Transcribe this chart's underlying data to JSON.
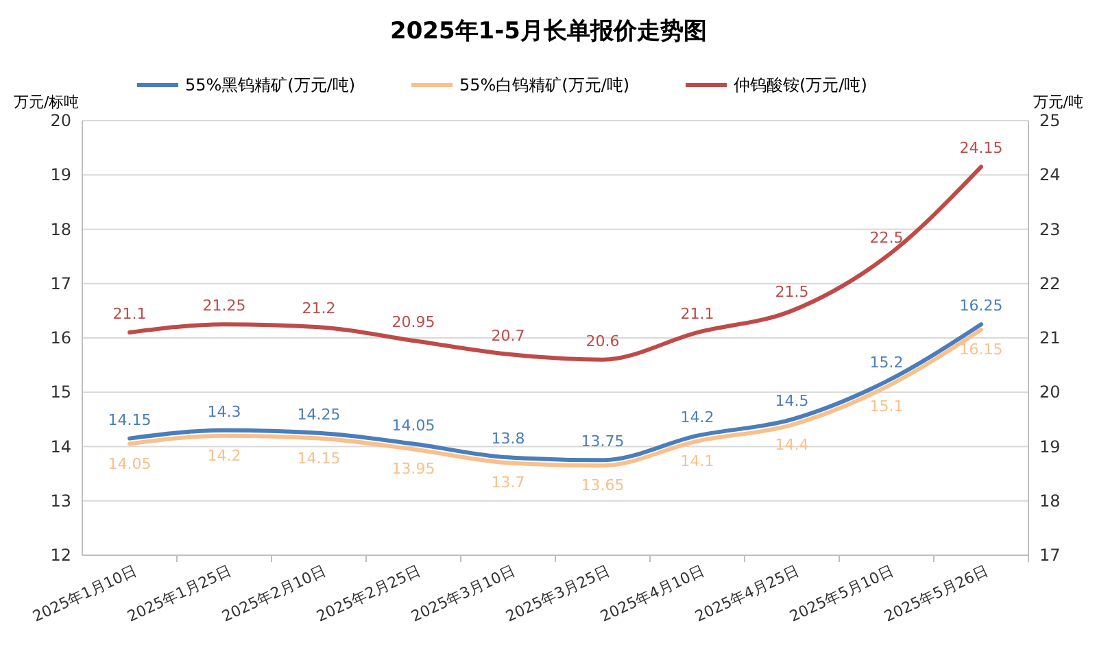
{
  "chart_data": {
    "type": "line",
    "title": "2025年1-5月长单报价走势图",
    "categories": [
      "2025年1月10日",
      "2025年1月25日",
      "2025年2月10日",
      "2025年2月25日",
      "2025年3月10日",
      "2025年3月25日",
      "2025年4月10日",
      "2025年4月25日",
      "2025年5月10日",
      "2025年5月26日"
    ],
    "series": [
      {
        "name": "55%黑钨精矿(万元/吨)",
        "color": "#4a7ebb",
        "values": [
          14.15,
          14.3,
          14.25,
          14.05,
          13.8,
          13.75,
          14.2,
          14.5,
          15.2,
          16.25
        ]
      },
      {
        "name": "55%白钨精矿(万元/吨)",
        "color": "#f9c08b",
        "values": [
          14.05,
          14.2,
          14.15,
          13.95,
          13.7,
          13.65,
          14.1,
          14.4,
          15.1,
          16.15
        ]
      },
      {
        "name": "仲钨酸铵(万元/吨)",
        "color": "#be4b48",
        "axis": "y2",
        "values": [
          21.1,
          21.25,
          21.2,
          20.95,
          20.7,
          20.6,
          21.1,
          21.5,
          22.5,
          24.15
        ]
      }
    ],
    "ylabel": "万元/标吨",
    "y2label": "万元/吨",
    "ylim": [
      12,
      20
    ],
    "yticks": [
      12,
      13,
      14,
      15,
      16,
      17,
      18,
      19,
      20
    ],
    "y2lim": [
      17,
      25
    ],
    "y2ticks": [
      17,
      18,
      19,
      20,
      21,
      22,
      23,
      24,
      25
    ],
    "grid": "y",
    "legend": "top",
    "data_labels": true,
    "marker": "none",
    "line_style": "solid"
  }
}
